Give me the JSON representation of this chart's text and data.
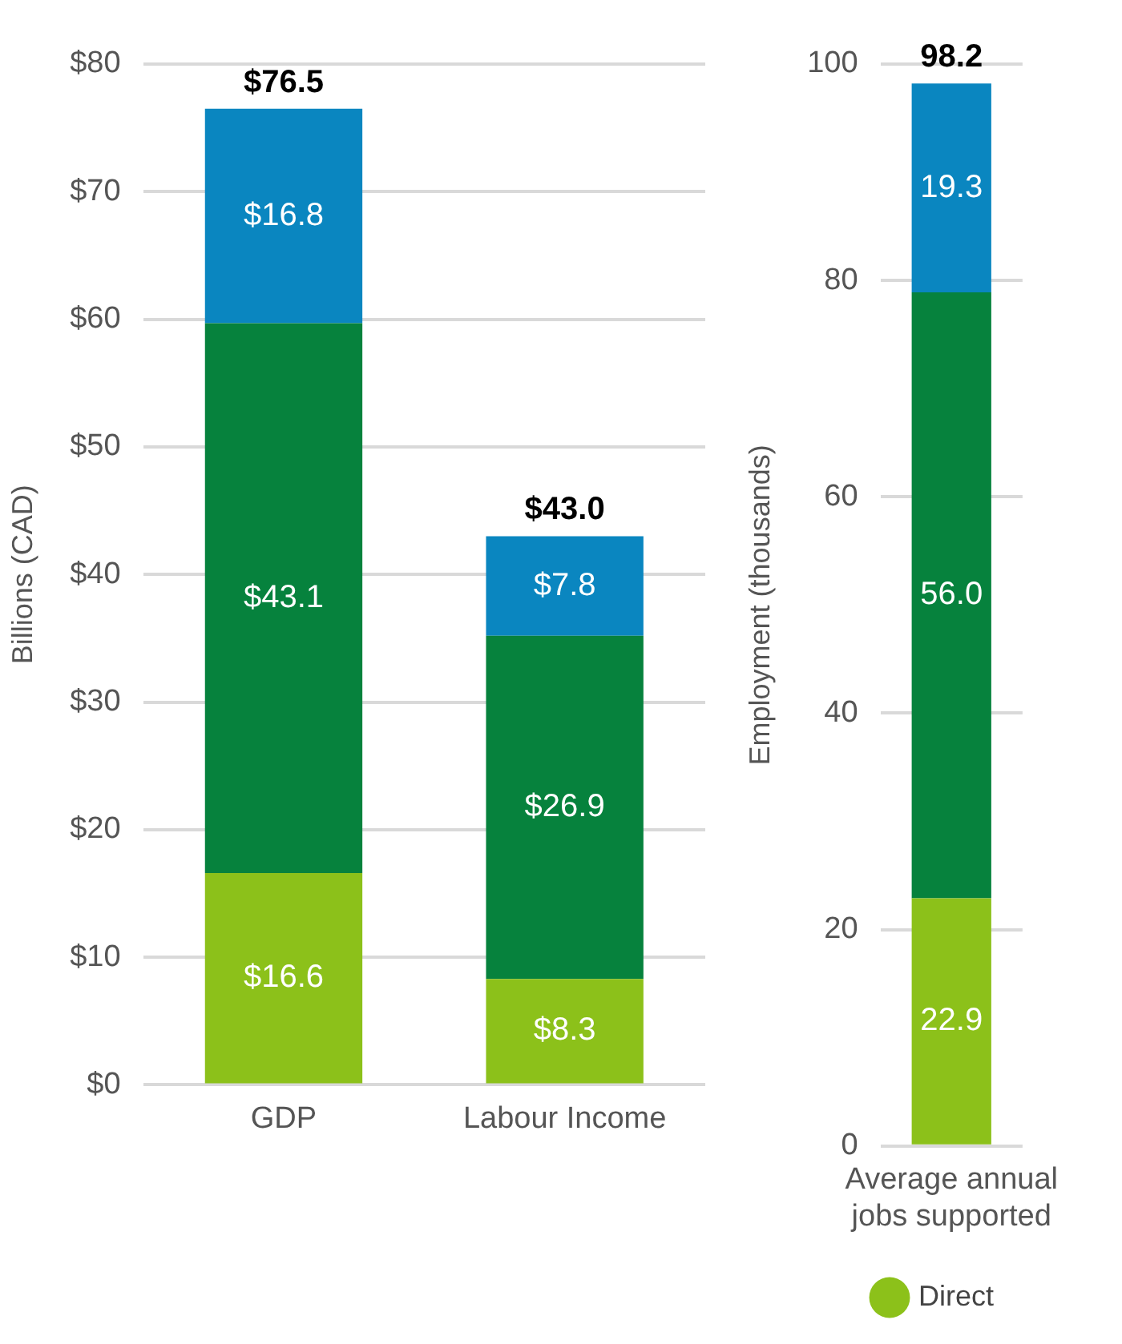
{
  "chart_data": [
    {
      "type": "bar",
      "stacked": true,
      "ylabel": "Billions (CAD)",
      "categories": [
        "GDP",
        "Labour Income"
      ],
      "series": [
        {
          "color": "#8cc11a",
          "values": [
            16.6,
            8.3
          ],
          "value_labels": [
            "$16.6",
            "$8.3"
          ]
        },
        {
          "color": "#06823d",
          "values": [
            43.1,
            26.9
          ],
          "value_labels": [
            "$43.1",
            "$26.9"
          ]
        },
        {
          "color": "#0a86c0",
          "values": [
            16.8,
            7.8
          ],
          "value_labels": [
            "$16.8",
            "$7.8"
          ]
        }
      ],
      "totals": [
        "$76.5",
        "$43.0"
      ],
      "ylim": [
        0,
        80
      ],
      "yticks": [
        {
          "value": 0,
          "label": "$0"
        },
        {
          "value": 10,
          "label": "$10"
        },
        {
          "value": 20,
          "label": "$20"
        },
        {
          "value": 30,
          "label": "$30"
        },
        {
          "value": 40,
          "label": "$40"
        },
        {
          "value": 50,
          "label": "$50"
        },
        {
          "value": 60,
          "label": "$60"
        },
        {
          "value": 70,
          "label": "$70"
        },
        {
          "value": 80,
          "label": "$80"
        }
      ],
      "grid": "y"
    },
    {
      "type": "bar",
      "stacked": true,
      "ylabel": "Employment (thousands)",
      "categories": [
        "Average annual jobs supported"
      ],
      "series": [
        {
          "name": "Direct",
          "color": "#8cc11a",
          "values": [
            22.9
          ],
          "value_labels": [
            "22.9"
          ]
        },
        {
          "color": "#06823d",
          "values": [
            56.0
          ],
          "value_labels": [
            "56.0"
          ]
        },
        {
          "color": "#0a86c0",
          "values": [
            19.3
          ],
          "value_labels": [
            "19.3"
          ]
        }
      ],
      "totals": [
        "98.2"
      ],
      "ylim": [
        0,
        100
      ],
      "yticks": [
        0,
        20,
        40,
        60,
        80,
        100
      ],
      "grid": "y",
      "legend": "bottom"
    }
  ]
}
